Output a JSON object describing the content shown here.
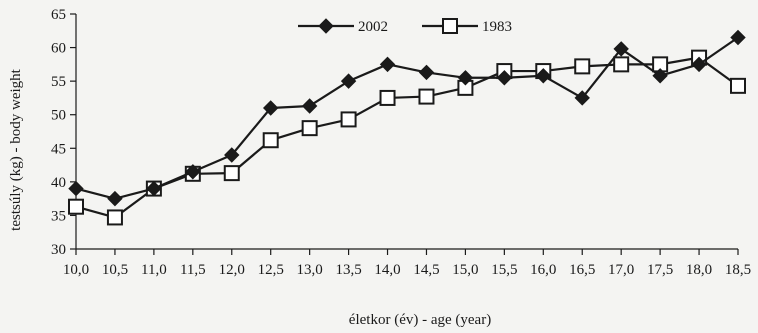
{
  "chart_data": {
    "type": "line",
    "xlabel": "életkor (év) - age (year)",
    "ylabel": "testsúly (kg) - body weight",
    "ylim": [
      30,
      65
    ],
    "yticks": [
      "30",
      "35",
      "40",
      "45",
      "50",
      "55",
      "60",
      "65"
    ],
    "categories": [
      "10,0",
      "10,5",
      "11,0",
      "11,5",
      "12,0",
      "12,5",
      "13,0",
      "13,5",
      "14,0",
      "14,5",
      "15,0",
      "15,5",
      "16,0",
      "16,5",
      "17,0",
      "17,5",
      "18,0",
      "18,5"
    ],
    "legend_position": "top-center",
    "grid": false,
    "series": [
      {
        "name": "2002",
        "marker": "filled-diamond",
        "color": "#1a1a1a",
        "values": [
          39.0,
          37.5,
          39.0,
          41.5,
          44.0,
          51.0,
          51.3,
          55.0,
          57.5,
          56.3,
          55.5,
          55.5,
          55.8,
          52.5,
          59.8,
          55.8,
          57.5,
          61.5
        ]
      },
      {
        "name": "1983",
        "marker": "open-square",
        "color": "#1a1a1a",
        "values": [
          36.3,
          34.7,
          39.0,
          41.2,
          41.3,
          46.2,
          48.0,
          49.3,
          52.5,
          52.7,
          54.0,
          56.5,
          56.5,
          57.2,
          57.5,
          57.5,
          58.5,
          54.3
        ]
      }
    ]
  }
}
